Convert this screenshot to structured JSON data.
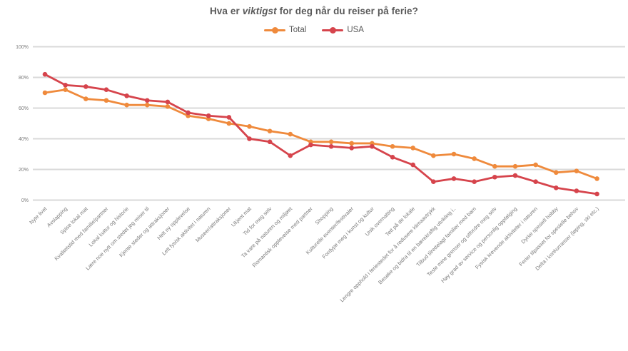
{
  "title": {
    "prefix": "Hva er ",
    "emphasis": "viktigst",
    "suffix": " for deg når du reiser på ferie?"
  },
  "legend": [
    {
      "label": "Total",
      "color": "#EF8A3C"
    },
    {
      "label": "USA",
      "color": "#D6444C"
    }
  ],
  "colors": {
    "grid": "#D9D9D9",
    "axis_text": "#7A7A7A",
    "title_text": "#595959"
  },
  "chart_data": {
    "type": "line",
    "title": "Hva er viktigst for deg når du reiser på ferie?",
    "xlabel": "",
    "ylabel": "",
    "ylim": [
      0,
      100
    ],
    "yticks": [
      "0%",
      "20%",
      "40%",
      "60%",
      "80%",
      "100%"
    ],
    "grid": true,
    "legend_position": "top",
    "categories": [
      "Nyte livet",
      "Avslapping",
      "Spise lokal mat",
      "Kvalitetstid med familie/partner",
      "Lokal kultur og historie",
      "Lære noe nytt om stedet jeg reiser til",
      "Kjente steder og attraksjoner",
      "Helt ny opplevelse",
      "Lett fysisk aktivitet i naturen",
      "Museer/attraksjoner",
      "Ukjent mat",
      "Tid for meg selv",
      "Ta vare på naturen og miljøet",
      "Romantisk opplevelse med partner",
      "Shopping",
      "Kulturelle eventer/festivaler",
      "Fordype meg i kunst og kultur",
      "Unik overnatting",
      "Tett på de lokale",
      "Lengre opphold i feriestedet for å redusere klimaavtrykk",
      "Besøke og bidra til en bærekraftig utvikling i..",
      "Tilbud tilrettelagt familier med barn",
      "Teste mine grenser og utfordre meg selv",
      "Høy grad av service og personlig oppfølging",
      "Fysisk krevende aktiviteter i naturen",
      "Dyrke spesiell hobby",
      "Ferier tilpasset for spesielle behov",
      "Delta i konkurranser (løping, ski etc.)"
    ],
    "series": [
      {
        "name": "Total",
        "color": "#EF8A3C",
        "values": [
          70,
          72,
          66,
          65,
          62,
          62,
          61,
          55,
          53,
          50,
          48,
          45,
          43,
          38,
          38,
          37,
          37,
          35,
          34,
          29,
          30,
          27,
          22,
          22,
          23,
          18,
          19,
          14
        ]
      },
      {
        "name": "USA",
        "color": "#D6444C",
        "values": [
          82,
          75,
          74,
          72,
          68,
          65,
          64,
          57,
          55,
          54,
          40,
          38,
          29,
          36,
          35,
          34,
          35,
          28,
          23,
          12,
          14,
          12,
          15,
          16,
          12,
          8,
          6,
          4
        ]
      }
    ]
  }
}
